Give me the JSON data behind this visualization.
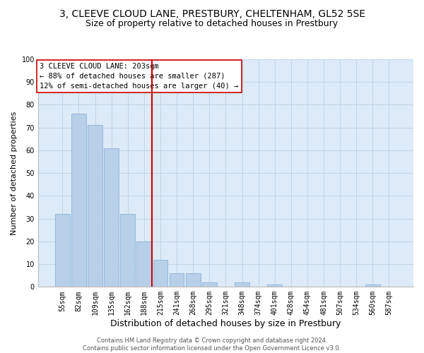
{
  "title": "3, CLEEVE CLOUD LANE, PRESTBURY, CHELTENHAM, GL52 5SE",
  "subtitle": "Size of property relative to detached houses in Prestbury",
  "xlabel": "Distribution of detached houses by size in Prestbury",
  "ylabel": "Number of detached properties",
  "bar_labels": [
    "55sqm",
    "82sqm",
    "109sqm",
    "135sqm",
    "162sqm",
    "188sqm",
    "215sqm",
    "241sqm",
    "268sqm",
    "295sqm",
    "321sqm",
    "348sqm",
    "374sqm",
    "401sqm",
    "428sqm",
    "454sqm",
    "481sqm",
    "507sqm",
    "534sqm",
    "560sqm",
    "587sqm"
  ],
  "bar_values": [
    32,
    76,
    71,
    61,
    32,
    20,
    12,
    6,
    6,
    2,
    0,
    2,
    0,
    1,
    0,
    0,
    0,
    0,
    0,
    1,
    0
  ],
  "bar_color": "#b8cfe8",
  "bar_edge_color": "#7aacd4",
  "vline_color": "#cc0000",
  "annotation_text": "3 CLEEVE CLOUD LANE: 203sqm\n← 88% of detached houses are smaller (287)\n12% of semi-detached houses are larger (40) →",
  "annotation_box_color": "#cc0000",
  "ylim": [
    0,
    100
  ],
  "yticks": [
    0,
    10,
    20,
    30,
    40,
    50,
    60,
    70,
    80,
    90,
    100
  ],
  "grid_color": "#c0d4e8",
  "bg_color": "#ddeaf7",
  "footer_text": "Contains HM Land Registry data © Crown copyright and database right 2024.\nContains public sector information licensed under the Open Government Licence v3.0.",
  "title_fontsize": 10,
  "subtitle_fontsize": 9,
  "ylabel_fontsize": 8,
  "xlabel_fontsize": 9,
  "tick_fontsize": 7,
  "annotation_fontsize": 7.5,
  "footer_fontsize": 6
}
